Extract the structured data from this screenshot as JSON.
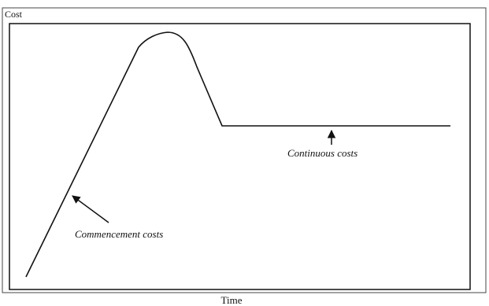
{
  "y_axis_label": "Cost",
  "x_axis_label": "Time",
  "annotations": [
    "Commencement costs",
    "Continuous costs"
  ]
}
